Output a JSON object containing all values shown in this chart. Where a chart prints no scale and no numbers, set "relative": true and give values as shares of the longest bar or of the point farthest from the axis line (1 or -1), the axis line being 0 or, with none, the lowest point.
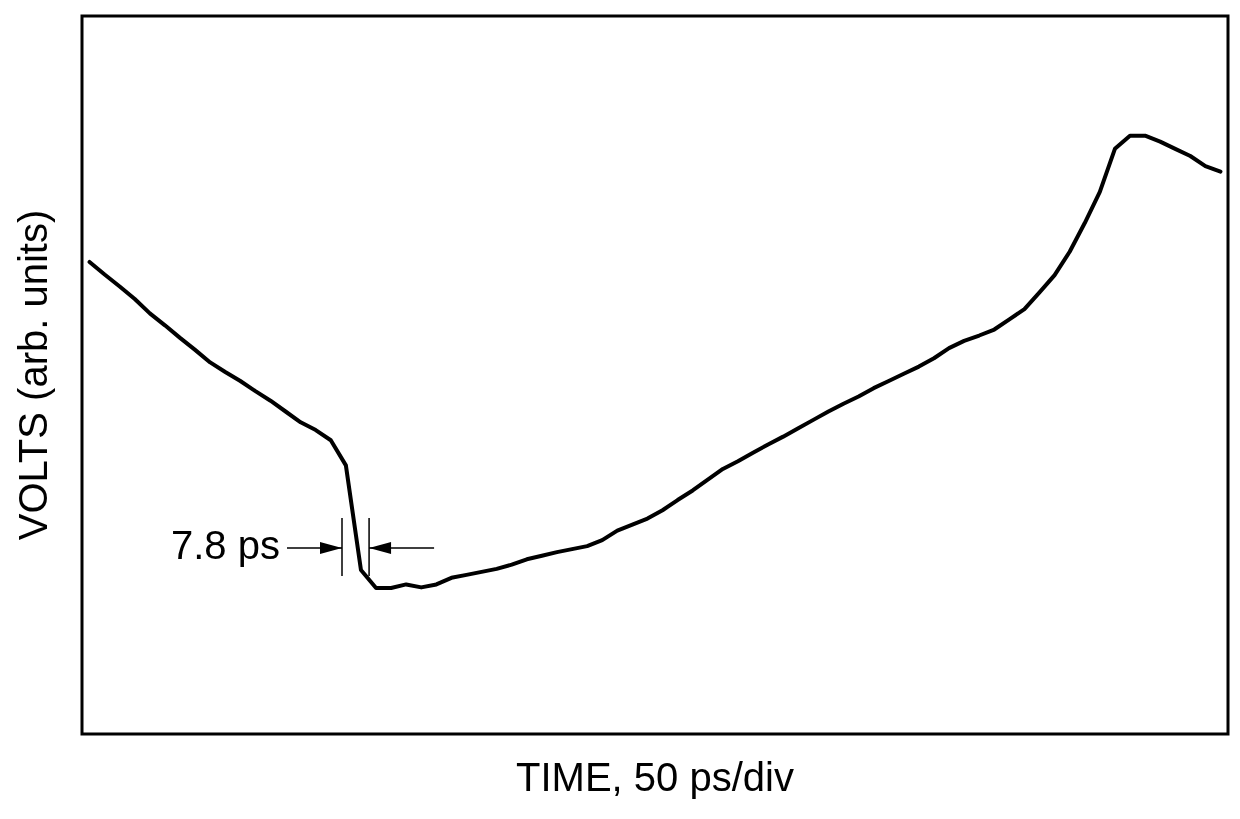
{
  "chart_data": {
    "type": "line",
    "relative": true,
    "xlabel": "TIME, 50 ps/div",
    "ylabel": "VOLTS (arb. units)",
    "categories": [
      null,
      null,
      null,
      null,
      null,
      null,
      null,
      null,
      null,
      null,
      null,
      null,
      null,
      null,
      null,
      null,
      null,
      null,
      null,
      null,
      null,
      null,
      null,
      null,
      null,
      null,
      null,
      null,
      null,
      null,
      null,
      null,
      null,
      null,
      null,
      null,
      null,
      null,
      null,
      null,
      null,
      null,
      null,
      null,
      null,
      null,
      null,
      null,
      null,
      null,
      null,
      null,
      null,
      null,
      null,
      null,
      null,
      null,
      null,
      null,
      null,
      null,
      null,
      null,
      null,
      null,
      null,
      null,
      null,
      null,
      null,
      null,
      null,
      null,
      null,
      null
    ],
    "series": [
      {
        "color": "#000000",
        "values": [
          0.789,
          0.768,
          0.748,
          0.727,
          0.703,
          0.683,
          0.662,
          0.642,
          0.621,
          0.605,
          0.59,
          0.573,
          0.557,
          0.539,
          0.521,
          0.508,
          0.491,
          0.449,
          0.274,
          0.244,
          0.244,
          0.25,
          0.245,
          0.25,
          0.261,
          0.266,
          0.271,
          0.276,
          0.283,
          0.292,
          0.298,
          0.304,
          0.309,
          0.314,
          0.324,
          0.34,
          0.35,
          0.36,
          0.374,
          0.391,
          0.407,
          0.425,
          0.443,
          0.456,
          0.47,
          0.484,
          0.497,
          0.511,
          0.525,
          0.539,
          0.552,
          0.564,
          0.578,
          0.59,
          0.602,
          0.614,
          0.628,
          0.645,
          0.657,
          0.666,
          0.676,
          0.693,
          0.71,
          0.738,
          0.767,
          0.806,
          0.854,
          0.906,
          0.978,
          1,
          1,
          0.99,
          0.978,
          0.966,
          0.949,
          0.94
        ]
      }
    ],
    "annotations": [
      "7.8 ps"
    ],
    "grid": false,
    "legend": false,
    "marker": "none",
    "line_style": "solid"
  }
}
